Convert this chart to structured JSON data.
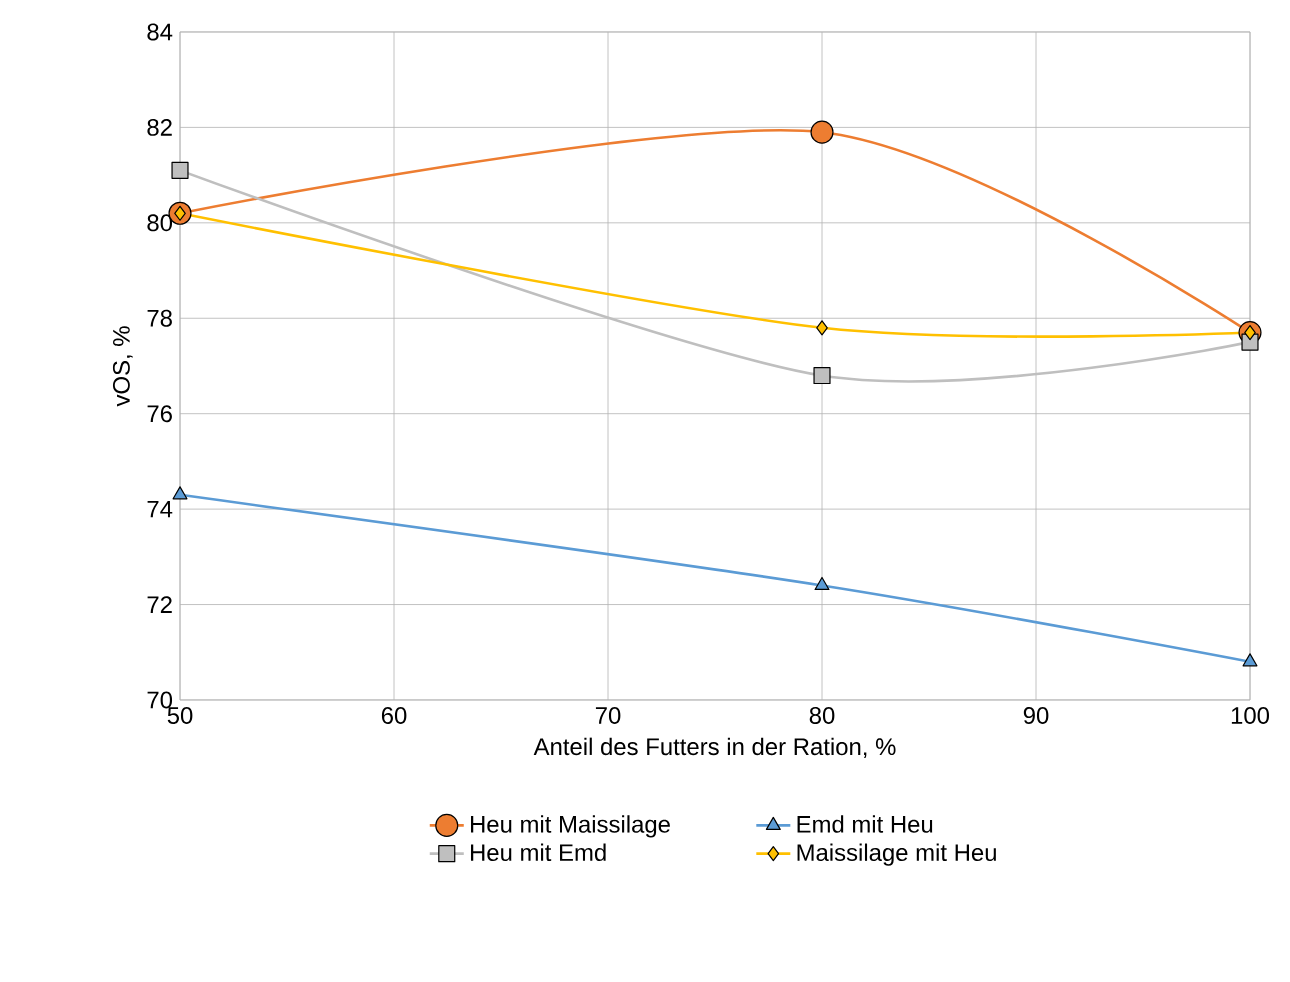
{
  "chart_data": {
    "type": "line",
    "xlabel": "Anteil des Futters in der Ration, %",
    "ylabel": "vOS, %",
    "x": [
      50,
      80,
      100
    ],
    "series": [
      {
        "name": "Heu mit Maissilage",
        "color": "#ed7d31",
        "marker": "circle",
        "values": [
          80.2,
          81.9,
          77.7
        ]
      },
      {
        "name": "Heu mit Emd",
        "color": "#bfbfbf",
        "marker": "square",
        "values": [
          81.1,
          76.8,
          77.5
        ]
      },
      {
        "name": "Emd mit Heu",
        "color": "#5b9bd5",
        "marker": "triangle",
        "values": [
          74.3,
          72.4,
          70.8
        ]
      },
      {
        "name": "Maissilage mit Heu",
        "color": "#ffc000",
        "marker": "diamond",
        "values": [
          80.2,
          77.8,
          77.7
        ]
      }
    ],
    "xlim": [
      50,
      100
    ],
    "xticks": [
      50,
      60,
      70,
      80,
      90,
      100
    ],
    "ylim": [
      70,
      84
    ],
    "yticks": [
      70,
      72,
      74,
      76,
      78,
      80,
      82,
      84
    ],
    "grid": true,
    "legend": "bottom",
    "line_style": "solid"
  }
}
